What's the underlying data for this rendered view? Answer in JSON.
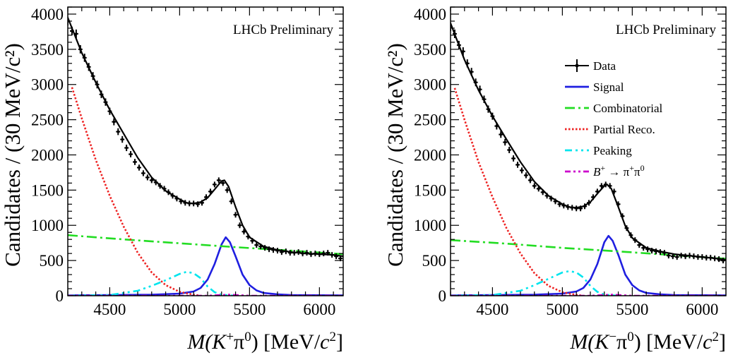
{
  "panels": [
    {
      "chart_data": {
        "type": "line",
        "ylabel": "Candidates / (30 MeV/c²)",
        "xlabel_parts": [
          "M(K",
          "+",
          "π",
          "0",
          ") [MeV/",
          "c",
          "2",
          "]"
        ],
        "watermark": "LHCb Preliminary",
        "xlim": [
          4200,
          6170
        ],
        "ylim": [
          0,
          4100
        ],
        "xticks": [
          4500,
          5000,
          5500,
          6000
        ],
        "xtick_labels": [
          "4500",
          "5000",
          "5500",
          "6000"
        ],
        "yticks": [
          0,
          500,
          1000,
          1500,
          2000,
          2500,
          3000,
          3500,
          4000
        ],
        "ytick_labels": [
          "0",
          "500",
          "1000",
          "1500",
          "2000",
          "2500",
          "3000",
          "3500",
          "4000"
        ],
        "data_points": {
          "x": [
            4200,
            4230,
            4260,
            4290,
            4320,
            4350,
            4380,
            4410,
            4440,
            4470,
            4500,
            4530,
            4560,
            4590,
            4620,
            4650,
            4680,
            4710,
            4740,
            4770,
            4800,
            4830,
            4860,
            4890,
            4920,
            4950,
            4980,
            5010,
            5040,
            5070,
            5100,
            5130,
            5160,
            5190,
            5220,
            5250,
            5280,
            5310,
            5340,
            5370,
            5400,
            5430,
            5460,
            5490,
            5520,
            5550,
            5580,
            5610,
            5640,
            5670,
            5700,
            5730,
            5760,
            5790,
            5820,
            5850,
            5880,
            5910,
            5940,
            5970,
            6000,
            6030,
            6060,
            6090,
            6120,
            6150
          ],
          "y": [
            3900,
            3760,
            3720,
            3500,
            3380,
            3250,
            3120,
            3000,
            2860,
            2750,
            2620,
            2470,
            2330,
            2220,
            2100,
            2010,
            1900,
            1820,
            1740,
            1680,
            1640,
            1610,
            1560,
            1520,
            1470,
            1420,
            1380,
            1340,
            1320,
            1310,
            1310,
            1300,
            1320,
            1400,
            1480,
            1580,
            1640,
            1600,
            1500,
            1340,
            1150,
            1000,
            910,
            840,
            780,
            720,
            700,
            680,
            660,
            650,
            640,
            620,
            630,
            610,
            610,
            620,
            600,
            610,
            590,
            600,
            590,
            600,
            610,
            580,
            560,
            530
          ]
        },
        "series": [
          {
            "name": "Total fit",
            "x": [
              4200,
              4300,
              4400,
              4500,
              4600,
              4700,
              4800,
              4900,
              5000,
              5050,
              5100,
              5150,
              5200,
              5250,
              5300,
              5320,
              5350,
              5400,
              5450,
              5500,
              5600,
              5700,
              5800,
              5900,
              6000,
              6100,
              6170
            ],
            "y": [
              3950,
              3450,
              3030,
              2640,
              2300,
              1960,
              1680,
              1490,
              1370,
              1320,
              1310,
              1330,
              1390,
              1510,
              1630,
              1640,
              1550,
              1260,
              1000,
              830,
              700,
              650,
              620,
              600,
              590,
              580,
              560
            ]
          },
          {
            "name": "Signal",
            "x": [
              4200,
              4500,
              4800,
              5000,
              5100,
              5150,
              5200,
              5250,
              5300,
              5330,
              5360,
              5400,
              5450,
              5500,
              5550,
              5600,
              5700,
              5800,
              6170
            ],
            "y": [
              5,
              10,
              15,
              30,
              60,
              110,
              230,
              450,
              730,
              830,
              760,
              560,
              300,
              150,
              75,
              40,
              20,
              10,
              5
            ]
          },
          {
            "name": "Combinatorial",
            "x": [
              4200,
              4600,
              5000,
              5400,
              5800,
              6170
            ],
            "y": [
              860,
              800,
              745,
              690,
              640,
              590
            ]
          },
          {
            "name": "Partial Reco.",
            "x": [
              4230,
              4300,
              4400,
              4500,
              4600,
              4700,
              4800,
              4900,
              5000,
              5100,
              5150
            ],
            "y": [
              2960,
              2520,
              1930,
              1420,
              980,
              610,
              330,
              150,
              55,
              15,
              0
            ]
          },
          {
            "name": "Peaking",
            "x": [
              4200,
              4500,
              4700,
              4800,
              4900,
              5000,
              5050,
              5100,
              5150,
              5200,
              5250,
              5300,
              5400
            ],
            "y": [
              0,
              10,
              70,
              140,
              220,
              310,
              340,
              320,
              250,
              130,
              50,
              15,
              0
            ]
          },
          {
            "name": "B+ → π+π0",
            "x": [
              4200,
              5200,
              5300,
              5350,
              5400,
              5500,
              6170
            ],
            "y": [
              0,
              0,
              10,
              15,
              10,
              0,
              0
            ]
          }
        ],
        "colors": {
          "Total fit": "#000000",
          "Signal": "#1f1fe0",
          "Combinatorial": "#22dd22",
          "Partial Reco.": "#ee2222",
          "Peaking": "#00e5ee",
          "B+ → π+π0": "#cc00cc"
        }
      }
    },
    {
      "chart_data": {
        "type": "line",
        "ylabel": "Candidates / (30 MeV/c²)",
        "xlabel_parts": [
          "M(K",
          "−",
          "π",
          "0",
          ") [MeV/",
          "c",
          "2",
          "]"
        ],
        "watermark": "LHCb Preliminary",
        "xlim": [
          4200,
          6170
        ],
        "ylim": [
          0,
          4100
        ],
        "xticks": [
          4500,
          5000,
          5500,
          6000
        ],
        "xtick_labels": [
          "4500",
          "5000",
          "5500",
          "6000"
        ],
        "yticks": [
          0,
          500,
          1000,
          1500,
          2000,
          2500,
          3000,
          3500,
          4000
        ],
        "ytick_labels": [
          "0",
          "500",
          "1000",
          "1500",
          "2000",
          "2500",
          "3000",
          "3500",
          "4000"
        ],
        "data_points": {
          "x": [
            4200,
            4230,
            4260,
            4290,
            4320,
            4350,
            4380,
            4410,
            4440,
            4470,
            4500,
            4530,
            4560,
            4590,
            4620,
            4650,
            4680,
            4710,
            4740,
            4770,
            4800,
            4830,
            4860,
            4890,
            4920,
            4950,
            4980,
            5010,
            5040,
            5070,
            5100,
            5130,
            5160,
            5190,
            5220,
            5250,
            5280,
            5310,
            5340,
            5370,
            5400,
            5430,
            5460,
            5490,
            5520,
            5550,
            5580,
            5610,
            5640,
            5670,
            5700,
            5730,
            5760,
            5790,
            5820,
            5850,
            5880,
            5910,
            5940,
            5970,
            6000,
            6030,
            6060,
            6090,
            6120,
            6150
          ],
          "y": [
            3820,
            3720,
            3560,
            3470,
            3300,
            3180,
            3030,
            2930,
            2790,
            2650,
            2550,
            2410,
            2290,
            2180,
            2070,
            1950,
            1860,
            1780,
            1710,
            1640,
            1560,
            1520,
            1470,
            1420,
            1380,
            1340,
            1300,
            1280,
            1260,
            1250,
            1240,
            1240,
            1270,
            1320,
            1400,
            1480,
            1560,
            1580,
            1560,
            1480,
            1300,
            1130,
            960,
            860,
            790,
            720,
            680,
            660,
            640,
            630,
            620,
            610,
            570,
            560,
            550,
            570,
            560,
            570,
            560,
            550,
            550,
            540,
            540,
            530,
            520,
            500
          ]
        },
        "series": [
          {
            "name": "Total fit",
            "x": [
              4200,
              4300,
              4400,
              4500,
              4600,
              4700,
              4800,
              4900,
              5000,
              5050,
              5100,
              5150,
              5200,
              5250,
              5300,
              5320,
              5350,
              5400,
              5450,
              5500,
              5600,
              5700,
              5800,
              5900,
              6000,
              6100,
              6170
            ],
            "y": [
              3870,
              3350,
              2920,
              2550,
              2220,
              1900,
              1620,
              1420,
              1300,
              1260,
              1250,
              1270,
              1330,
              1450,
              1560,
              1580,
              1520,
              1260,
              990,
              820,
              680,
              630,
              590,
              570,
              550,
              530,
              510
            ]
          },
          {
            "name": "Signal",
            "x": [
              4200,
              4500,
              4800,
              5000,
              5100,
              5150,
              5200,
              5250,
              5300,
              5330,
              5360,
              5400,
              5450,
              5500,
              5550,
              5600,
              5700,
              5800,
              6170
            ],
            "y": [
              5,
              10,
              15,
              30,
              60,
              110,
              230,
              450,
              760,
              850,
              780,
              580,
              300,
              150,
              75,
              40,
              20,
              10,
              5
            ]
          },
          {
            "name": "Combinatorial",
            "x": [
              4200,
              4600,
              5000,
              5400,
              5800,
              6170
            ],
            "y": [
              790,
              740,
              680,
              630,
              575,
              525
            ]
          },
          {
            "name": "Partial Reco.",
            "x": [
              4230,
              4300,
              4400,
              4500,
              4600,
              4700,
              4800,
              4900,
              5000,
              5100,
              5150
            ],
            "y": [
              2950,
              2500,
              1900,
              1400,
              960,
              600,
              320,
              140,
              50,
              12,
              0
            ]
          },
          {
            "name": "Peaking",
            "x": [
              4200,
              4500,
              4700,
              4800,
              4900,
              5000,
              5050,
              5100,
              5150,
              5200,
              5250,
              5300,
              5400
            ],
            "y": [
              0,
              10,
              70,
              150,
              240,
              330,
              350,
              330,
              260,
              140,
              55,
              15,
              0
            ]
          },
          {
            "name": "B+ → π+π0",
            "x": [
              4200,
              5200,
              5300,
              5350,
              5400,
              5500,
              6170
            ],
            "y": [
              0,
              0,
              10,
              15,
              10,
              0,
              0
            ]
          }
        ],
        "colors": {
          "Total fit": "#000000",
          "Signal": "#1f1fe0",
          "Combinatorial": "#22dd22",
          "Partial Reco.": "#ee2222",
          "Peaking": "#00e5ee",
          "B+ → π+π0": "#cc00cc"
        },
        "legend": {
          "placement": "right",
          "entries": [
            {
              "label": "Data",
              "style": "data"
            },
            {
              "label": "Signal",
              "style": "Signal"
            },
            {
              "label": "Combinatorial",
              "style": "Combinatorial"
            },
            {
              "label": "Partial Reco.",
              "style": "Partial Reco."
            },
            {
              "label": "Peaking",
              "style": "Peaking"
            },
            {
              "label_parts": [
                "B",
                "+",
                " → π",
                "+",
                "π",
                "0"
              ],
              "style": "B+ → π+π0"
            }
          ]
        }
      }
    }
  ]
}
